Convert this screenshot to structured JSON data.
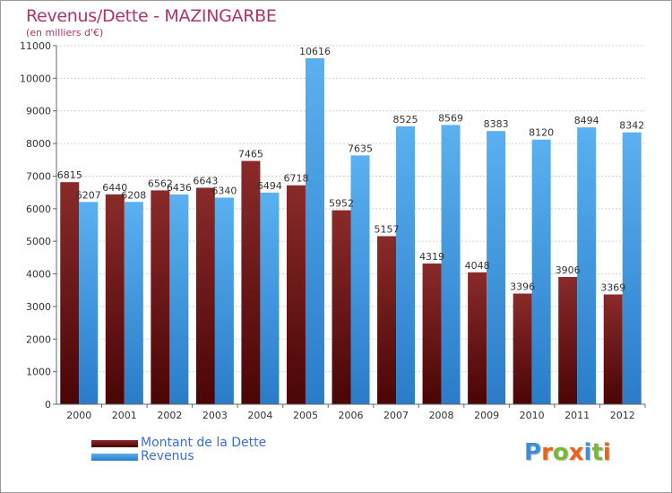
{
  "chart_data": {
    "type": "bar",
    "title": "Revenus/Dette - MAZINGARBE",
    "subtitle": "(en milliers d'€)",
    "categories": [
      "2000",
      "2001",
      "2002",
      "2003",
      "2004",
      "2005",
      "2006",
      "2007",
      "2008",
      "2009",
      "2010",
      "2011",
      "2012"
    ],
    "series": [
      {
        "name": "Montant de la Dette",
        "color": "#7a1515",
        "values": [
          6815,
          6440,
          6562,
          6643,
          7465,
          6718,
          5952,
          5157,
          4319,
          4048,
          3396,
          3906,
          3369
        ]
      },
      {
        "name": "Revenus",
        "color": "#4aa3e8",
        "values": [
          6207,
          6208,
          6436,
          6340,
          6494,
          10616,
          7635,
          8525,
          8569,
          8383,
          8120,
          8494,
          8342
        ]
      }
    ],
    "ylim": [
      0,
      11000
    ],
    "yticks": [
      0,
      1000,
      2000,
      3000,
      4000,
      5000,
      6000,
      7000,
      8000,
      9000,
      10000,
      11000
    ],
    "grid": true,
    "legend_position": "bottom-left"
  },
  "logo": {
    "letters": [
      "P",
      "r",
      "o",
      "x",
      "i",
      "t",
      "i"
    ],
    "colors": [
      "#3b8fd8",
      "#e8641b",
      "#7ab83a",
      "#e8641b",
      "#3b8fd8",
      "#7ab83a",
      "#e8641b"
    ]
  }
}
